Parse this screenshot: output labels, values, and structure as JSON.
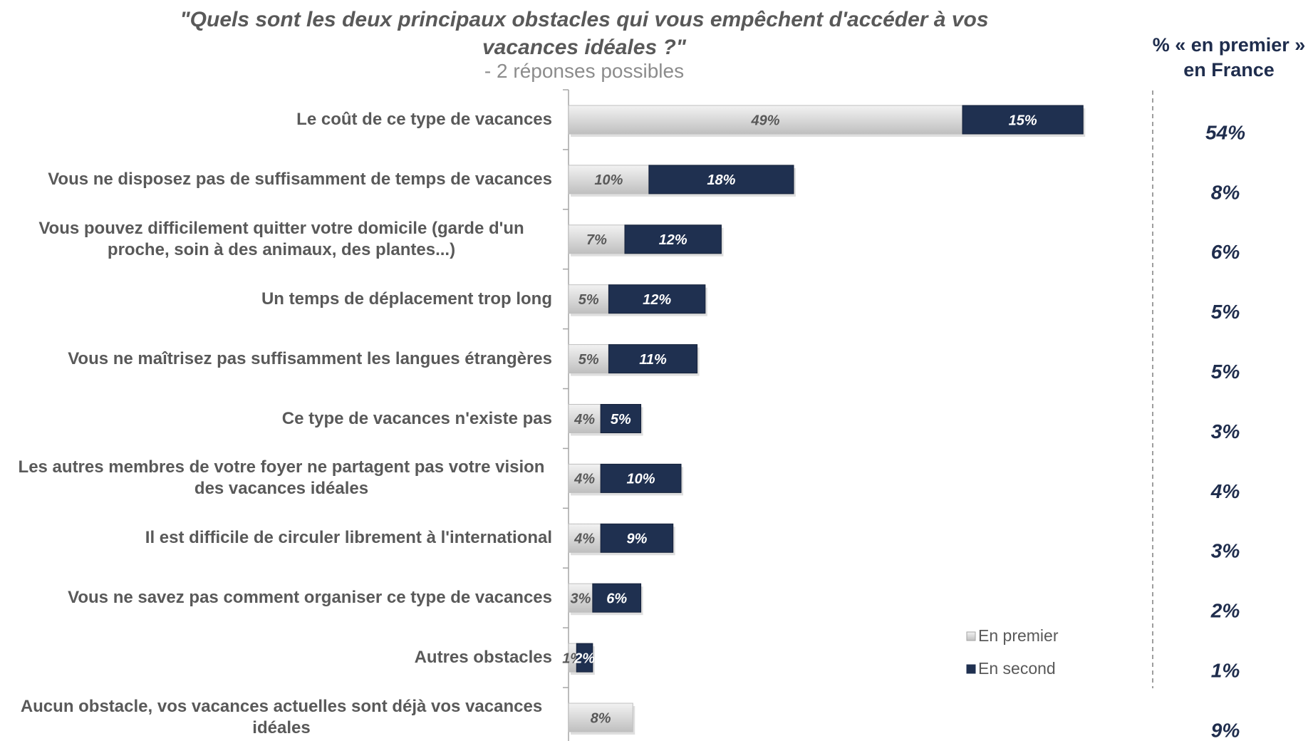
{
  "chart_data": {
    "type": "stacked-bar-horizontal",
    "title": "\"Quels sont les deux principaux obstacles qui vous empêchent d'accéder à vos vacances idéales ?\"",
    "subtitle": "- 2 réponses possibles",
    "categories": [
      "Le coût de ce type de vacances",
      "Vous ne disposez pas de suffisamment de temps de vacances",
      "Vous pouvez difficilement quitter votre domicile (garde d'un proche, soin à des animaux, des plantes...)",
      "Un temps de déplacement trop long",
      "Vous ne maîtrisez pas suffisamment les langues étrangères",
      "Ce type de vacances n'existe pas",
      "Les autres membres de votre foyer ne partagent pas votre vision des vacances idéales",
      "Il est difficile de circuler librement à l'international",
      "Vous ne savez pas comment organiser ce type de vacances",
      "Autres obstacles",
      "Aucun obstacle, vos vacances actuelles sont déjà vos vacances idéales"
    ],
    "series": [
      {
        "name": "En premier",
        "color": "#d9d9d9",
        "label_color": "#595959",
        "values": [
          49,
          10,
          7,
          5,
          5,
          4,
          4,
          4,
          3,
          1,
          8
        ],
        "value_labels": [
          "49%",
          "10%",
          "7%",
          "5%",
          "5%",
          "4%",
          "4%",
          "4%",
          "3%",
          "1%",
          "8%"
        ]
      },
      {
        "name": "En second",
        "color": "#1f3050",
        "label_color": "#ffffff",
        "values": [
          15,
          18,
          12,
          12,
          11,
          5,
          10,
          9,
          6,
          2,
          null
        ],
        "value_labels": [
          "15%",
          "18%",
          "12%",
          "12%",
          "11%",
          "5%",
          "10%",
          "9%",
          "6%",
          "2%",
          null
        ]
      }
    ],
    "xlim": [
      0,
      70
    ],
    "legend": "lower right",
    "side_column": {
      "title": "% « en premier » en France",
      "values": [
        54,
        8,
        6,
        5,
        5,
        3,
        4,
        3,
        2,
        1,
        9
      ],
      "value_labels": [
        "54%",
        "8%",
        "6%",
        "5%",
        "5%",
        "3%",
        "4%",
        "3%",
        "2%",
        "1%",
        "9%"
      ]
    }
  }
}
